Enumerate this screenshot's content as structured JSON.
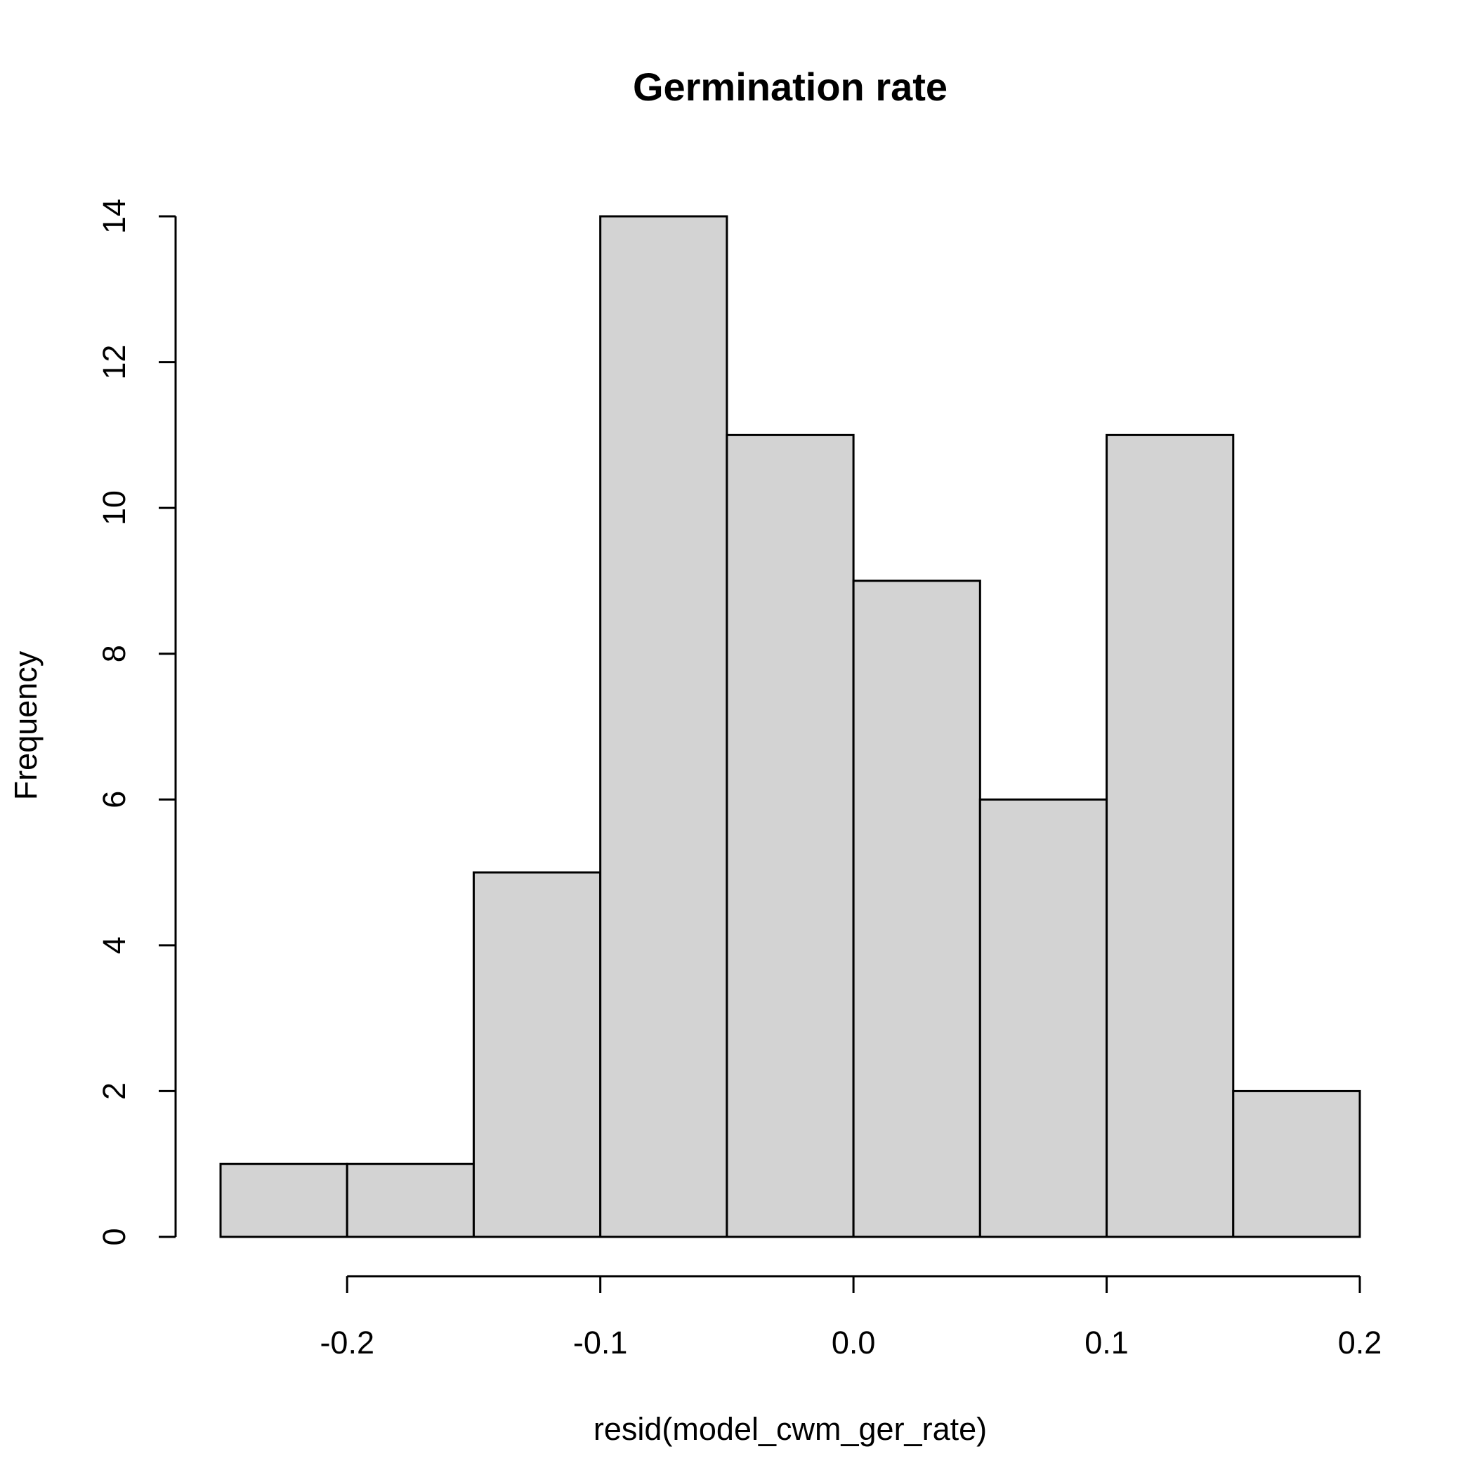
{
  "chart_data": {
    "type": "bar",
    "title": "Germination rate",
    "xlabel": "resid(model_cwm_ger_rate)",
    "ylabel": "Frequency",
    "bin_edges": [
      -0.25,
      -0.2,
      -0.15,
      -0.1,
      -0.05,
      0.0,
      0.05,
      0.1,
      0.15,
      0.2
    ],
    "values": [
      1,
      1,
      5,
      14,
      11,
      9,
      6,
      11,
      2
    ],
    "xlim": [
      -0.25,
      0.2
    ],
    "ylim": [
      0,
      14
    ],
    "x_ticks": [
      -0.2,
      -0.1,
      0.0,
      0.1,
      0.2
    ],
    "x_tick_labels": [
      "-0.2",
      "-0.1",
      "0.0",
      "0.1",
      "0.2"
    ],
    "y_ticks": [
      0,
      2,
      4,
      6,
      8,
      10,
      12,
      14
    ],
    "y_tick_labels": [
      "0",
      "2",
      "4",
      "6",
      "8",
      "10",
      "12",
      "14"
    ],
    "bar_fill": "#d3d3d3",
    "bar_stroke": "#000000",
    "grid": false,
    "legend": "none"
  }
}
